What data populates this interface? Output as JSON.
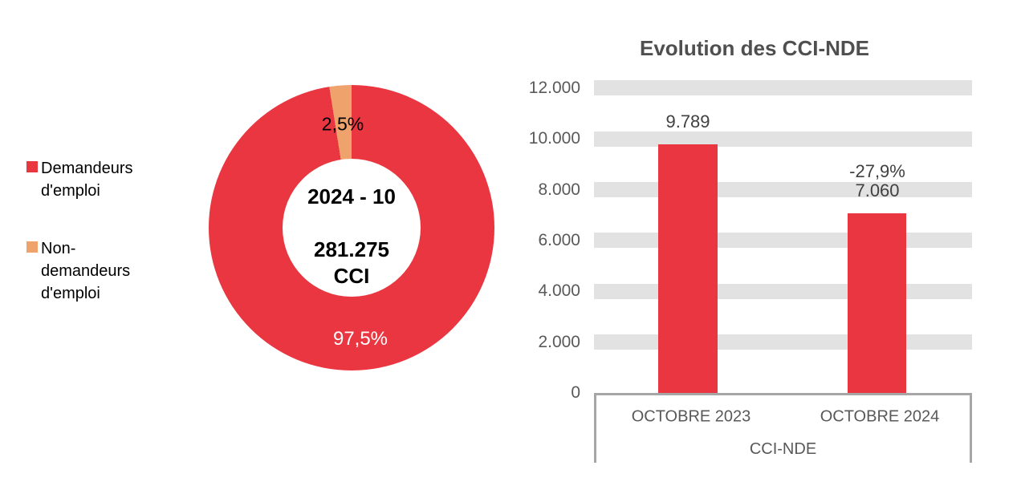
{
  "colors": {
    "red": "#E93640",
    "orange": "#F0A26C",
    "grid_band": "#E2E2E2",
    "axis_border": "#A6A6A6",
    "tick_text": "#595959",
    "label_text": "#404040",
    "title_text": "#4F4F4F"
  },
  "chart_data": [
    {
      "type": "pie",
      "subtype": "donut",
      "categories": [
        "Demandeurs d'emploi",
        "Non-demandeurs d'emploi"
      ],
      "values": [
        97.5,
        2.5
      ],
      "value_labels": [
        "97,5%",
        "2,5%"
      ],
      "colors": [
        "#E93640",
        "#F0A26C"
      ],
      "center_text": [
        "2024 - 10",
        "281.275",
        "CCI"
      ],
      "legend_position": "left",
      "start_angle_deg": 0,
      "direction": "clockwise"
    },
    {
      "type": "bar",
      "title": "Evolution des CCI-NDE",
      "categories": [
        "OCTOBRE 2023",
        "OCTOBRE 2024"
      ],
      "values": [
        9789,
        7060
      ],
      "value_labels": [
        "9.789",
        "7.060"
      ],
      "annotations": [
        "",
        "-27,9%"
      ],
      "xlabel": "CCI-NDE",
      "ylabel": "",
      "ylim": [
        0,
        12000
      ],
      "ytick_step": 2000,
      "ytick_labels": [
        "12.000",
        "10.000",
        "8.000",
        "6.000",
        "4.000",
        "2.000",
        "0"
      ],
      "grid": "horizontal-bands",
      "bar_color": "#E93640",
      "legend_position": "none"
    }
  ]
}
